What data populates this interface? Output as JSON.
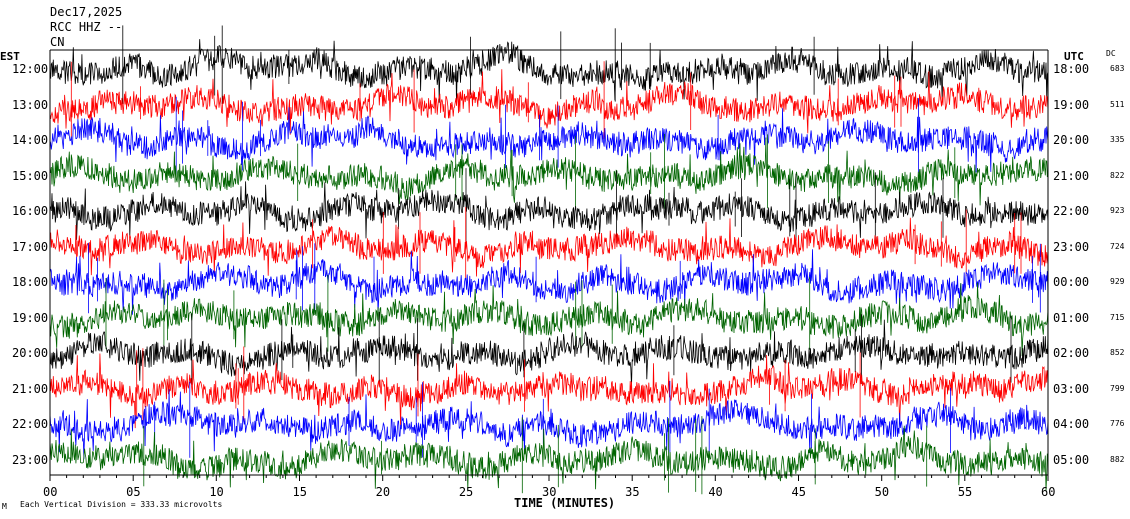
{
  "header": {
    "date": "Dec17,2025",
    "station": "RCC HHZ --",
    "network": "CN"
  },
  "left_tz": "EST",
  "right_tz": "UTC",
  "dc_header": "DC",
  "rows": [
    {
      "local": "12:00",
      "utc": "18:00",
      "dc": "683",
      "color": "#000000"
    },
    {
      "local": "13:00",
      "utc": "19:00",
      "dc": "511",
      "color": "#ff0000"
    },
    {
      "local": "14:00",
      "utc": "20:00",
      "dc": "335",
      "color": "#0000ff"
    },
    {
      "local": "15:00",
      "utc": "21:00",
      "dc": "822",
      "color": "#006400"
    },
    {
      "local": "16:00",
      "utc": "22:00",
      "dc": "923",
      "color": "#000000"
    },
    {
      "local": "17:00",
      "utc": "23:00",
      "dc": "724",
      "color": "#ff0000"
    },
    {
      "local": "18:00",
      "utc": "00:00",
      "dc": "929",
      "color": "#0000ff"
    },
    {
      "local": "19:00",
      "utc": "01:00",
      "dc": "715",
      "color": "#006400"
    },
    {
      "local": "20:00",
      "utc": "02:00",
      "dc": "852",
      "color": "#000000"
    },
    {
      "local": "21:00",
      "utc": "03:00",
      "dc": "799",
      "color": "#ff0000"
    },
    {
      "local": "22:00",
      "utc": "04:00",
      "dc": "776",
      "color": "#0000ff"
    },
    {
      "local": "23:00",
      "utc": "05:00",
      "dc": "882",
      "color": "#006400"
    }
  ],
  "chart_data": {
    "type": "line",
    "xlabel": "TIME (MINUTES)",
    "xlim": [
      0,
      60
    ],
    "x_ticks": [
      "00",
      "05",
      "10",
      "15",
      "20",
      "25",
      "30",
      "35",
      "40",
      "45",
      "50",
      "55",
      "60"
    ],
    "trace_colors": [
      "#000000",
      "#ff0000",
      "#0000ff",
      "#006400"
    ],
    "series_count": 12
  },
  "footer": {
    "logo": "M",
    "scale_text": "Each Vertical Division =  333.33 microvolts"
  }
}
